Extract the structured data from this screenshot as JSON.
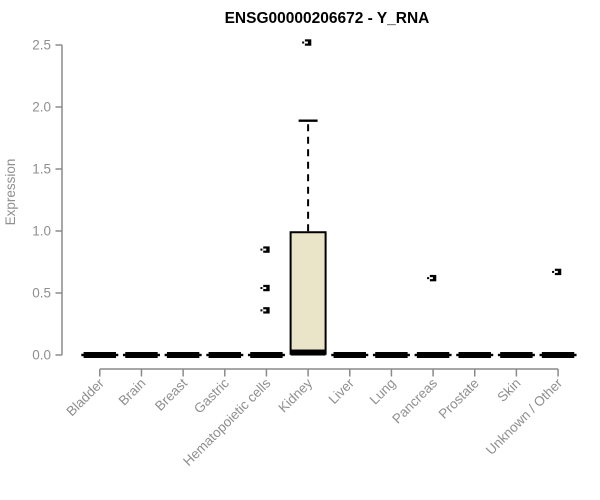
{
  "chart_data": {
    "type": "boxplot",
    "title": "ENSG00000206672 - Y_RNA",
    "ylabel": "Expression",
    "xlabel": "",
    "ylim": [
      0,
      2.5
    ],
    "yticks": [
      0,
      0.5,
      1.0,
      1.5,
      2.0,
      2.5
    ],
    "ytick_labels": [
      "0.0",
      "0.5",
      "1.0",
      "1.5",
      "2.0",
      "2.5"
    ],
    "grid": false,
    "legend": null,
    "categories": [
      "Bladder",
      "Brain",
      "Breast",
      "Gastric",
      "Hematopoietic cells",
      "Kidney",
      "Liver",
      "Lung",
      "Pancreas",
      "Prostate",
      "Skin",
      "Unknown / Other"
    ],
    "series": [
      {
        "category": "Bladder",
        "q1": 0,
        "median": 0,
        "q3": 0,
        "whisker_low": 0,
        "whisker_high": 0,
        "outliers": []
      },
      {
        "category": "Brain",
        "q1": 0,
        "median": 0,
        "q3": 0,
        "whisker_low": 0,
        "whisker_high": 0,
        "outliers": []
      },
      {
        "category": "Breast",
        "q1": 0,
        "median": 0,
        "q3": 0,
        "whisker_low": 0,
        "whisker_high": 0,
        "outliers": []
      },
      {
        "category": "Gastric",
        "q1": 0,
        "median": 0,
        "q3": 0,
        "whisker_low": 0,
        "whisker_high": 0,
        "outliers": []
      },
      {
        "category": "Hematopoietic cells",
        "q1": 0,
        "median": 0,
        "q3": 0,
        "whisker_low": 0,
        "whisker_high": 0,
        "outliers": [
          0.85,
          0.54,
          0.36
        ]
      },
      {
        "category": "Kidney",
        "q1": 0.01,
        "median": 0.02,
        "q3": 0.99,
        "whisker_low": 0,
        "whisker_high": 1.89,
        "outliers": [
          2.52
        ]
      },
      {
        "category": "Liver",
        "q1": 0,
        "median": 0,
        "q3": 0,
        "whisker_low": 0,
        "whisker_high": 0,
        "outliers": []
      },
      {
        "category": "Lung",
        "q1": 0,
        "median": 0,
        "q3": 0,
        "whisker_low": 0,
        "whisker_high": 0,
        "outliers": []
      },
      {
        "category": "Pancreas",
        "q1": 0,
        "median": 0,
        "q3": 0,
        "whisker_low": 0,
        "whisker_high": 0,
        "outliers": [
          0.62
        ]
      },
      {
        "category": "Prostate",
        "q1": 0,
        "median": 0,
        "q3": 0,
        "whisker_low": 0,
        "whisker_high": 0,
        "outliers": []
      },
      {
        "category": "Skin",
        "q1": 0,
        "median": 0,
        "q3": 0,
        "whisker_low": 0,
        "whisker_high": 0,
        "outliers": []
      },
      {
        "category": "Unknown / Other",
        "q1": 0,
        "median": 0,
        "q3": 0,
        "whisker_low": 0,
        "whisker_high": 0,
        "outliers": [
          0.67
        ]
      }
    ],
    "colors": {
      "background": "#ffffff",
      "box_fill": "#EAE4C8",
      "box_border": "#000000",
      "median": "#000000",
      "whisker": "#000000",
      "outlier": "#000000",
      "axis": "#8a8a8a",
      "tick_label": "#8f8f8f",
      "title": "#000000"
    }
  }
}
